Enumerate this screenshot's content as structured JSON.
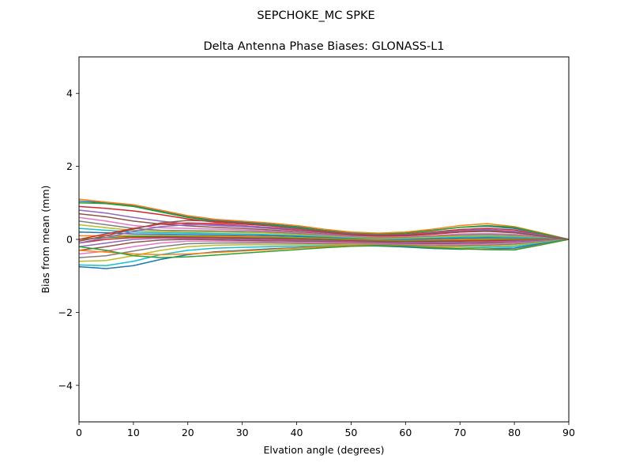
{
  "figure": {
    "suptitle": "SEPCHOKE_MC     SPKE"
  },
  "chart_data": {
    "type": "line",
    "title": "Delta Antenna Phase Biases: GLONASS-L1",
    "xlabel": "Elvation angle (degrees)",
    "ylabel": "Bias from mean (mm)",
    "xlim": [
      0,
      90
    ],
    "ylim": [
      -5,
      5
    ],
    "x_ticks": [
      0,
      10,
      20,
      30,
      40,
      50,
      60,
      70,
      80,
      90
    ],
    "x_tick_labels": [
      "0",
      "10",
      "20",
      "30",
      "40",
      "50",
      "60",
      "70",
      "80",
      "90"
    ],
    "y_ticks": [
      -4,
      -2,
      0,
      2,
      4
    ],
    "y_tick_labels": [
      "−4",
      "−2",
      "0",
      "2",
      "4"
    ],
    "grid": false,
    "legend": "none",
    "colors": [
      "#1f77b4",
      "#ff7f0e",
      "#2ca02c",
      "#d62728",
      "#9467bd",
      "#8c564b",
      "#e377c2",
      "#7f7f7f",
      "#bcbd22",
      "#17becf"
    ],
    "x": [
      0,
      5,
      10,
      15,
      20,
      25,
      30,
      35,
      40,
      45,
      50,
      55,
      60,
      65,
      70,
      75,
      80,
      85,
      90
    ],
    "series": [
      {
        "values": [
          1.05,
          1.0,
          0.92,
          0.78,
          0.62,
          0.52,
          0.48,
          0.42,
          0.35,
          0.25,
          0.18,
          0.15,
          0.18,
          0.25,
          0.33,
          0.36,
          0.3,
          0.15,
          0.0
        ]
      },
      {
        "values": [
          1.1,
          1.02,
          0.95,
          0.8,
          0.65,
          0.55,
          0.5,
          0.45,
          0.38,
          0.28,
          0.2,
          0.17,
          0.2,
          0.28,
          0.38,
          0.43,
          0.35,
          0.18,
          0.0
        ]
      },
      {
        "values": [
          1.0,
          0.98,
          0.9,
          0.75,
          0.6,
          0.5,
          0.45,
          0.4,
          0.33,
          0.24,
          0.17,
          0.14,
          0.17,
          0.24,
          0.33,
          0.38,
          0.33,
          0.16,
          0.0
        ]
      },
      {
        "values": [
          0.9,
          0.85,
          0.78,
          0.68,
          0.56,
          0.47,
          0.42,
          0.37,
          0.3,
          0.22,
          0.15,
          0.12,
          0.14,
          0.2,
          0.27,
          0.3,
          0.26,
          0.12,
          0.0
        ]
      },
      {
        "values": [
          0.8,
          0.72,
          0.6,
          0.5,
          0.42,
          0.38,
          0.35,
          0.3,
          0.25,
          0.18,
          0.12,
          0.1,
          0.12,
          0.18,
          0.24,
          0.27,
          0.22,
          0.1,
          0.0
        ]
      },
      {
        "values": [
          0.7,
          0.62,
          0.5,
          0.42,
          0.37,
          0.33,
          0.3,
          0.26,
          0.21,
          0.15,
          0.1,
          0.08,
          0.1,
          0.15,
          0.2,
          0.22,
          0.18,
          0.08,
          0.0
        ]
      },
      {
        "values": [
          0.6,
          0.5,
          0.38,
          0.32,
          0.3,
          0.28,
          0.26,
          0.23,
          0.18,
          0.13,
          0.08,
          0.06,
          0.07,
          0.1,
          0.15,
          0.16,
          0.14,
          0.06,
          0.0
        ]
      },
      {
        "values": [
          0.5,
          0.4,
          0.3,
          0.25,
          0.24,
          0.23,
          0.22,
          0.2,
          0.16,
          0.11,
          0.06,
          0.04,
          0.05,
          0.08,
          0.12,
          0.13,
          0.11,
          0.05,
          0.0
        ]
      },
      {
        "values": [
          0.4,
          0.32,
          0.25,
          0.22,
          0.2,
          0.2,
          0.19,
          0.17,
          0.13,
          0.09,
          0.05,
          0.02,
          0.03,
          0.06,
          0.09,
          0.1,
          0.08,
          0.04,
          0.0
        ]
      },
      {
        "values": [
          0.3,
          0.25,
          0.2,
          0.18,
          0.17,
          0.16,
          0.15,
          0.13,
          0.1,
          0.07,
          0.03,
          0.0,
          0.01,
          0.03,
          0.06,
          0.07,
          0.06,
          0.03,
          0.0
        ]
      },
      {
        "values": [
          0.2,
          0.18,
          0.15,
          0.14,
          0.13,
          0.12,
          0.11,
          0.1,
          0.08,
          0.05,
          0.02,
          -0.01,
          -0.01,
          0.01,
          0.03,
          0.04,
          0.03,
          0.02,
          0.0
        ]
      },
      {
        "values": [
          0.1,
          0.1,
          0.1,
          0.1,
          0.09,
          0.09,
          0.08,
          0.07,
          0.05,
          0.03,
          0.0,
          -0.02,
          -0.03,
          -0.02,
          0.0,
          0.01,
          0.01,
          0.01,
          0.0
        ]
      },
      {
        "values": [
          0.0,
          0.05,
          0.08,
          0.08,
          0.07,
          0.06,
          0.05,
          0.04,
          0.03,
          0.01,
          -0.02,
          -0.04,
          -0.05,
          -0.04,
          -0.03,
          -0.02,
          -0.01,
          0.0,
          0.0
        ]
      },
      {
        "values": [
          -0.1,
          0.0,
          0.05,
          0.06,
          0.05,
          0.04,
          0.03,
          0.02,
          0.0,
          -0.02,
          -0.04,
          -0.06,
          -0.07,
          -0.06,
          -0.05,
          -0.04,
          -0.03,
          -0.01,
          0.0
        ]
      },
      {
        "values": [
          -0.2,
          -0.1,
          0.0,
          0.03,
          0.03,
          0.02,
          0.0,
          -0.01,
          -0.02,
          -0.04,
          -0.06,
          -0.08,
          -0.09,
          -0.09,
          -0.08,
          -0.07,
          -0.05,
          -0.02,
          0.0
        ]
      },
      {
        "values": [
          -0.3,
          -0.2,
          -0.08,
          -0.02,
          0.0,
          -0.01,
          -0.03,
          -0.04,
          -0.05,
          -0.06,
          -0.08,
          -0.1,
          -0.12,
          -0.12,
          -0.11,
          -0.1,
          -0.08,
          -0.04,
          0.0
        ]
      },
      {
        "values": [
          -0.4,
          -0.32,
          -0.2,
          -0.1,
          -0.05,
          -0.05,
          -0.06,
          -0.07,
          -0.08,
          -0.09,
          -0.1,
          -0.12,
          -0.14,
          -0.15,
          -0.14,
          -0.13,
          -0.1,
          -0.05,
          0.0
        ]
      },
      {
        "values": [
          -0.5,
          -0.45,
          -0.32,
          -0.2,
          -0.12,
          -0.1,
          -0.1,
          -0.1,
          -0.11,
          -0.12,
          -0.13,
          -0.14,
          -0.16,
          -0.18,
          -0.17,
          -0.16,
          -0.13,
          -0.06,
          0.0
        ]
      },
      {
        "values": [
          -0.6,
          -0.58,
          -0.45,
          -0.3,
          -0.2,
          -0.16,
          -0.15,
          -0.15,
          -0.15,
          -0.15,
          -0.15,
          -0.16,
          -0.18,
          -0.2,
          -0.2,
          -0.19,
          -0.16,
          -0.08,
          0.0
        ]
      },
      {
        "values": [
          -0.7,
          -0.72,
          -0.6,
          -0.42,
          -0.3,
          -0.24,
          -0.22,
          -0.2,
          -0.19,
          -0.18,
          -0.17,
          -0.18,
          -0.2,
          -0.23,
          -0.24,
          -0.22,
          -0.2,
          -0.1,
          0.0
        ]
      },
      {
        "values": [
          -0.75,
          -0.8,
          -0.72,
          -0.55,
          -0.42,
          -0.34,
          -0.3,
          -0.26,
          -0.23,
          -0.2,
          -0.18,
          -0.18,
          -0.21,
          -0.25,
          -0.27,
          -0.26,
          -0.24,
          -0.12,
          0.0
        ]
      },
      {
        "values": [
          -0.3,
          -0.35,
          -0.4,
          -0.42,
          -0.4,
          -0.36,
          -0.32,
          -0.28,
          -0.24,
          -0.2,
          -0.17,
          -0.16,
          -0.18,
          -0.22,
          -0.25,
          -0.27,
          -0.28,
          -0.14,
          0.0
        ]
      },
      {
        "values": [
          -0.2,
          -0.3,
          -0.45,
          -0.5,
          -0.48,
          -0.43,
          -0.38,
          -0.33,
          -0.28,
          -0.23,
          -0.19,
          -0.17,
          -0.19,
          -0.23,
          -0.26,
          -0.28,
          -0.29,
          -0.15,
          0.0
        ]
      },
      {
        "values": [
          0.0,
          0.15,
          0.3,
          0.42,
          0.45,
          0.43,
          0.38,
          0.32,
          0.26,
          0.2,
          0.14,
          0.1,
          0.1,
          0.14,
          0.2,
          0.24,
          0.2,
          0.1,
          0.0
        ]
      },
      {
        "values": [
          -0.1,
          0.05,
          0.22,
          0.35,
          0.4,
          0.4,
          0.37,
          0.33,
          0.28,
          0.22,
          0.16,
          0.12,
          0.13,
          0.17,
          0.22,
          0.25,
          0.22,
          0.11,
          0.0
        ]
      },
      {
        "values": [
          -0.05,
          0.1,
          0.28,
          0.45,
          0.52,
          0.5,
          0.45,
          0.38,
          0.3,
          0.22,
          0.15,
          0.11,
          0.12,
          0.16,
          0.21,
          0.23,
          0.19,
          0.09,
          0.0
        ]
      }
    ]
  }
}
